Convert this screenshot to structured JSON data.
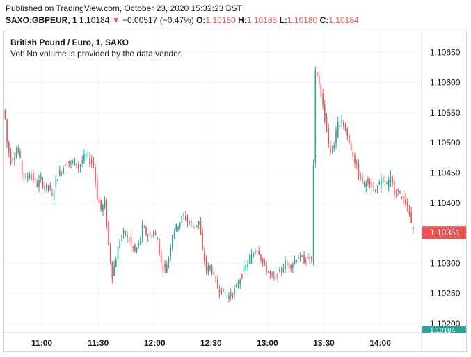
{
  "header": {
    "published": "Published on TradingView.com, October 23, 2020 15:32:23 BST",
    "symbol": "SAXO:GBPEUR, 1",
    "last": "1.10184",
    "arrow": "▼",
    "change": "−0.00517 (−0.47%)",
    "o_label": "O:",
    "o_value": "1.10180",
    "h_label": "H:",
    "h_value": "1.10185",
    "l_label": "L:",
    "l_value": "1.10180",
    "c_label": "C:",
    "c_value": "1.10184"
  },
  "legend": {
    "title": "British Pound / Euro, 1, SAXO",
    "volume_note": "Vol: No volume is provided by the data vendor."
  },
  "colors": {
    "up": "#26a69a",
    "down": "#ef5350",
    "grid": "#f0f3fa",
    "axis_text": "#131722"
  },
  "chart_data": {
    "type": "candlestick",
    "x_ticks": [
      "11:00",
      "11:30",
      "12:00",
      "12:30",
      "13:00",
      "13:30",
      "14:00"
    ],
    "y_ticks": [
      "1.10650",
      "1.10600",
      "1.10550",
      "1.10500",
      "1.10450",
      "1.10400",
      "1.10300",
      "1.10250",
      "1.10200"
    ],
    "ylim": [
      1.10185,
      1.10685
    ],
    "current_price_label": "1.10351",
    "bottom_price_label": "1.10184",
    "path": [
      [
        "10:40",
        1.10555
      ],
      [
        "10:41",
        1.1054
      ],
      [
        "10:42",
        1.105
      ],
      [
        "10:44",
        1.1047
      ],
      [
        "10:46",
        1.1048
      ],
      [
        "10:48",
        1.1049
      ],
      [
        "10:50",
        1.1045
      ],
      [
        "10:52",
        1.1044
      ],
      [
        "10:54",
        1.1045
      ],
      [
        "10:56",
        1.1044
      ],
      [
        "10:58",
        1.1043
      ],
      [
        "11:00",
        1.1044
      ],
      [
        "11:02",
        1.10425
      ],
      [
        "11:04",
        1.1043
      ],
      [
        "11:06",
        1.1041
      ],
      [
        "11:08",
        1.1044
      ],
      [
        "11:10",
        1.1045
      ],
      [
        "11:12",
        1.1046
      ],
      [
        "11:14",
        1.1047
      ],
      [
        "11:16",
        1.10465
      ],
      [
        "11:18",
        1.1047
      ],
      [
        "11:20",
        1.1046
      ],
      [
        "11:22",
        1.1047
      ],
      [
        "11:24",
        1.1048
      ],
      [
        "11:26",
        1.1047
      ],
      [
        "11:28",
        1.10465
      ],
      [
        "11:30",
        1.1041
      ],
      [
        "11:32",
        1.1039
      ],
      [
        "11:34",
        1.104
      ],
      [
        "11:36",
        1.1033
      ],
      [
        "11:38",
        1.1028
      ],
      [
        "11:40",
        1.1031
      ],
      [
        "11:42",
        1.1034
      ],
      [
        "11:44",
        1.1035
      ],
      [
        "11:46",
        1.10345
      ],
      [
        "11:48",
        1.1033
      ],
      [
        "11:50",
        1.1032
      ],
      [
        "11:52",
        1.1033
      ],
      [
        "11:54",
        1.1036
      ],
      [
        "11:56",
        1.1035
      ],
      [
        "11:58",
        1.10345
      ],
      [
        "12:00",
        1.1035
      ],
      [
        "12:02",
        1.1034
      ],
      [
        "12:04",
        1.103
      ],
      [
        "12:06",
        1.1029
      ],
      [
        "12:08",
        1.1031
      ],
      [
        "12:10",
        1.1035
      ],
      [
        "12:12",
        1.1036
      ],
      [
        "12:14",
        1.1037
      ],
      [
        "12:16",
        1.1038
      ],
      [
        "12:18",
        1.1037
      ],
      [
        "12:20",
        1.10365
      ],
      [
        "12:22",
        1.1036
      ],
      [
        "12:24",
        1.1037
      ],
      [
        "12:26",
        1.1032
      ],
      [
        "12:28",
        1.1029
      ],
      [
        "12:30",
        1.10295
      ],
      [
        "12:32",
        1.1028
      ],
      [
        "12:34",
        1.1026
      ],
      [
        "12:36",
        1.10255
      ],
      [
        "12:38",
        1.1025
      ],
      [
        "12:40",
        1.10245
      ],
      [
        "12:42",
        1.1025
      ],
      [
        "12:44",
        1.1026
      ],
      [
        "12:46",
        1.10275
      ],
      [
        "12:48",
        1.1029
      ],
      [
        "12:50",
        1.103
      ],
      [
        "12:52",
        1.1031
      ],
      [
        "12:54",
        1.10325
      ],
      [
        "12:56",
        1.1032
      ],
      [
        "12:58",
        1.103
      ],
      [
        "13:00",
        1.1029
      ],
      [
        "13:02",
        1.1028
      ],
      [
        "13:04",
        1.10275
      ],
      [
        "13:06",
        1.1028
      ],
      [
        "13:08",
        1.1029
      ],
      [
        "13:10",
        1.103
      ],
      [
        "13:12",
        1.10295
      ],
      [
        "13:14",
        1.103
      ],
      [
        "13:16",
        1.1031
      ],
      [
        "13:18",
        1.1031
      ],
      [
        "13:20",
        1.10305
      ],
      [
        "13:22",
        1.1031
      ],
      [
        "13:24",
        1.10305
      ],
      [
        "13:26",
        1.1062
      ],
      [
        "13:28",
        1.106
      ],
      [
        "13:30",
        1.1056
      ],
      [
        "13:32",
        1.1052
      ],
      [
        "13:34",
        1.1048
      ],
      [
        "13:36",
        1.105
      ],
      [
        "13:38",
        1.1053
      ],
      [
        "13:40",
        1.1054
      ],
      [
        "13:42",
        1.1052
      ],
      [
        "13:44",
        1.105
      ],
      [
        "13:46",
        1.1048
      ],
      [
        "13:48",
        1.1046
      ],
      [
        "13:50",
        1.1044
      ],
      [
        "13:52",
        1.1043
      ],
      [
        "13:54",
        1.1044
      ],
      [
        "13:56",
        1.1043
      ],
      [
        "13:58",
        1.1042
      ],
      [
        "14:00",
        1.1043
      ],
      [
        "14:02",
        1.1044
      ],
      [
        "14:04",
        1.1043
      ],
      [
        "14:06",
        1.1044
      ],
      [
        "14:08",
        1.1042
      ],
      [
        "14:10",
        1.1042
      ],
      [
        "14:12",
        1.1041
      ],
      [
        "14:14",
        1.104
      ],
      [
        "14:16",
        1.1038
      ],
      [
        "14:18",
        1.10351
      ]
    ]
  }
}
